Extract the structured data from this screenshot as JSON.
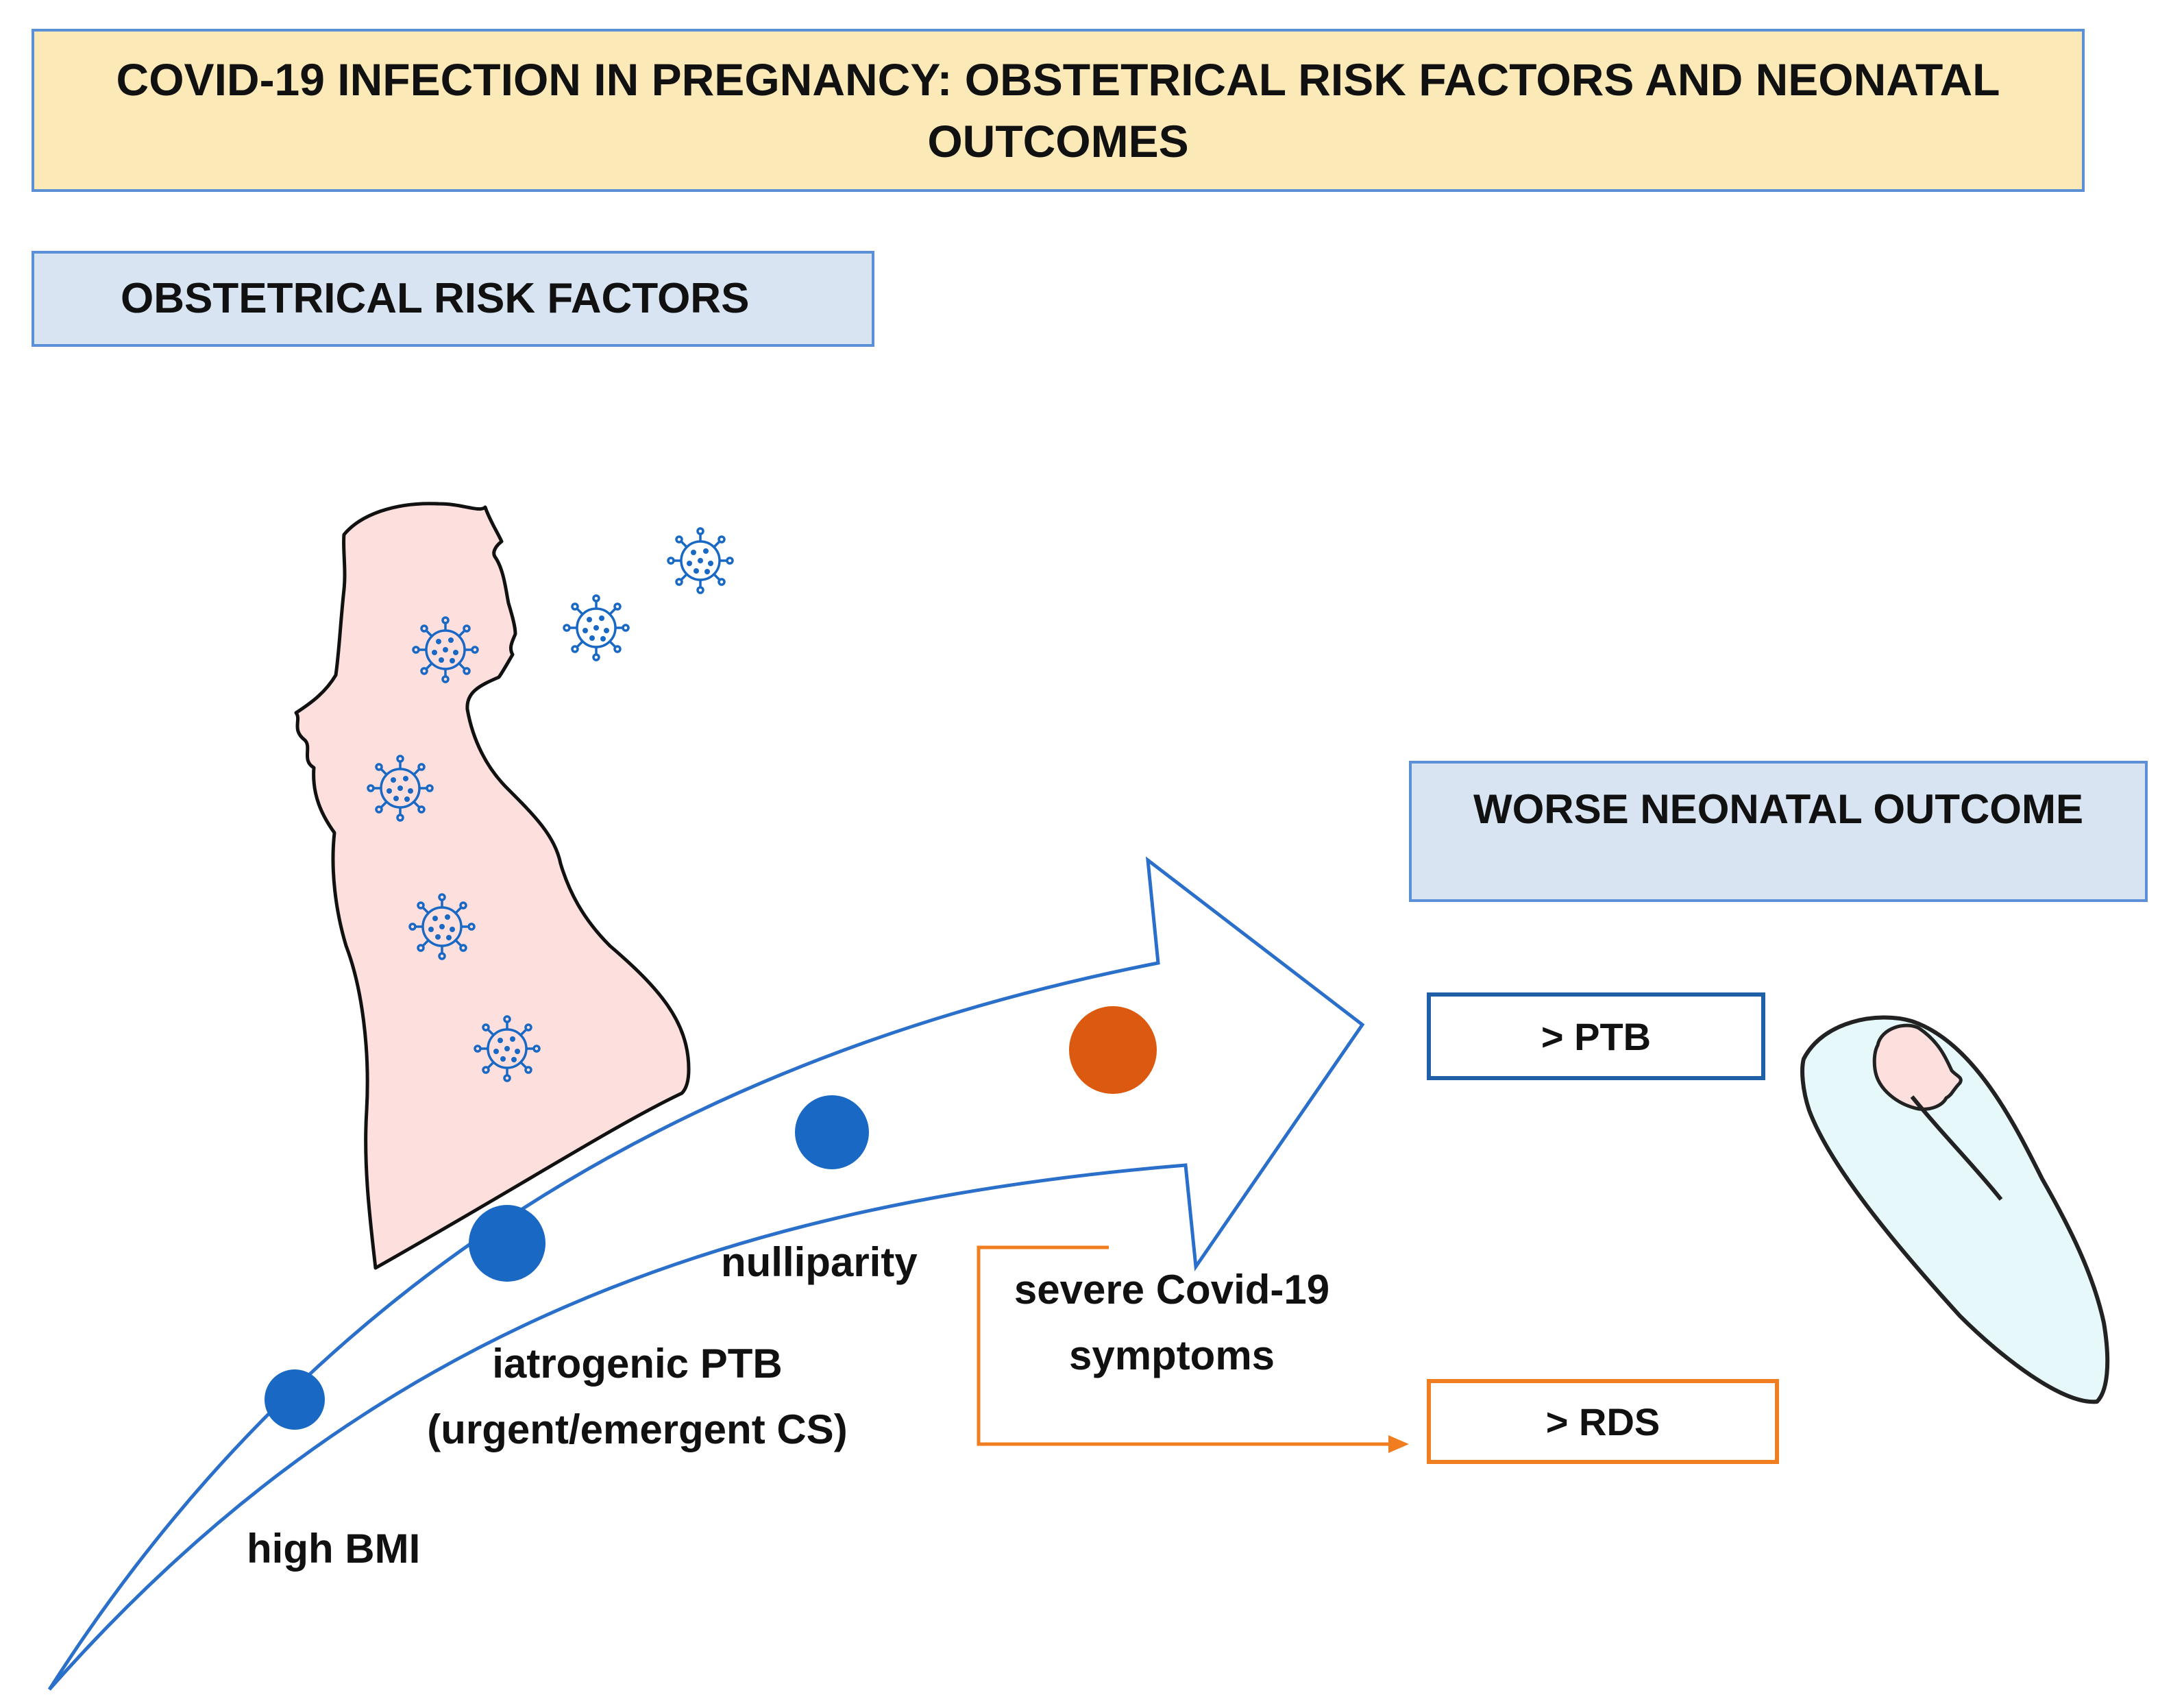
{
  "title": "COVID-19 INFECTION IN PREGNANCY: OBSTETRICAL RISK FACTORS AND NEONATAL OUTCOMES",
  "risk_factors_header": "OBSTETRICAL RISK FACTORS",
  "outcome_header": "WORSE NEONATAL OUTCOME",
  "outcomes": {
    "ptb": "> PTB",
    "rds": "> RDS"
  },
  "risk_factors": {
    "high_bmi": "high BMI",
    "iatrogenic_line1": "iatrogenic PTB",
    "iatrogenic_line2": "(urgent/emergent CS)",
    "nulliparity": "nulliparity",
    "severe_line1": "severe Covid-19",
    "severe_line2": "symptoms"
  },
  "icons": {
    "mother": "pregnant-woman-silhouette-icon",
    "virus": "virus-icon",
    "baby": "swaddled-newborn-icon"
  },
  "colors": {
    "arrow_outline": "#2a6fc9",
    "blue_dot": "#1868c4",
    "orange_dot": "#dc5a10",
    "orange_connector": "#f07d1f",
    "mother_fill": "#fde0de",
    "baby_blanket": "#e6f8fa",
    "baby_face": "#fde0de"
  }
}
